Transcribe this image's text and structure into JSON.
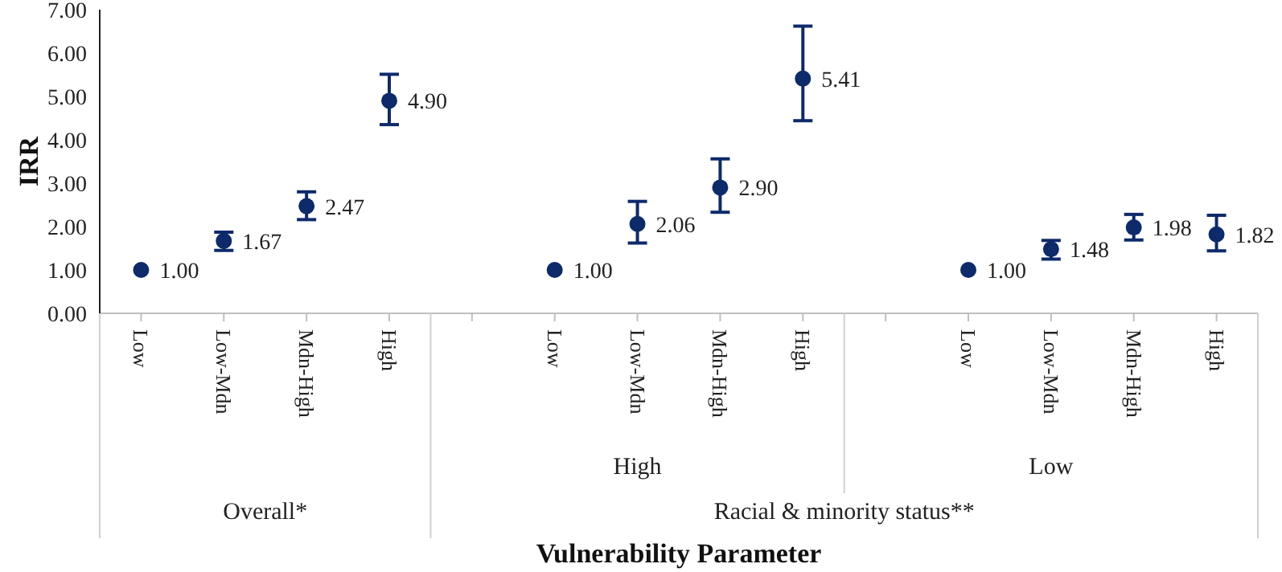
{
  "chart_data": {
    "type": "scatter",
    "ylabel": "IRR",
    "xlabel": "Vulnerability Parameter",
    "categories": [
      "Low",
      "Low-Mdn",
      "Mdn-High",
      "High",
      null,
      "Low",
      "Low-Mdn",
      "Mdn-High",
      "High",
      null,
      "Low",
      "Low-Mdn",
      "Mdn-High",
      "High"
    ],
    "series": [
      {
        "color": "#0d2a6b",
        "values": [
          1.0,
          1.67,
          2.47,
          4.9,
          null,
          1.0,
          2.06,
          2.9,
          5.41,
          null,
          1.0,
          1.48,
          1.98,
          1.82
        ],
        "errors": [
          null,
          [
            1.45,
            1.87
          ],
          [
            2.16,
            2.8
          ],
          [
            4.35,
            5.51
          ],
          null,
          null,
          [
            1.62,
            2.58
          ],
          [
            2.33,
            3.56
          ],
          [
            4.44,
            6.62
          ],
          null,
          null,
          [
            1.25,
            1.68
          ],
          [
            1.69,
            2.28
          ],
          [
            1.44,
            2.26
          ]
        ],
        "value_labels": [
          "1.00",
          "1.67",
          "2.47",
          "4.90",
          null,
          "1.00",
          "2.06",
          "2.90",
          "5.41",
          null,
          "1.00",
          "1.48",
          "1.98",
          "1.82"
        ]
      }
    ],
    "ylim": [
      0,
      7
    ],
    "yticks": [
      {
        "value": 0,
        "label": "0.00"
      },
      {
        "value": 1,
        "label": "1.00"
      },
      {
        "value": 2,
        "label": "2.00"
      },
      {
        "value": 3,
        "label": "3.00"
      },
      {
        "value": 4,
        "label": "4.00"
      },
      {
        "value": 5,
        "label": "5.00"
      },
      {
        "value": 6,
        "label": "6.00"
      },
      {
        "value": 7,
        "label": "7.00"
      }
    ],
    "grid": false,
    "legend": false,
    "marker": "circle",
    "annotations": [
      "High",
      "Low",
      "Overall*",
      "Racial & minority status**"
    ]
  }
}
